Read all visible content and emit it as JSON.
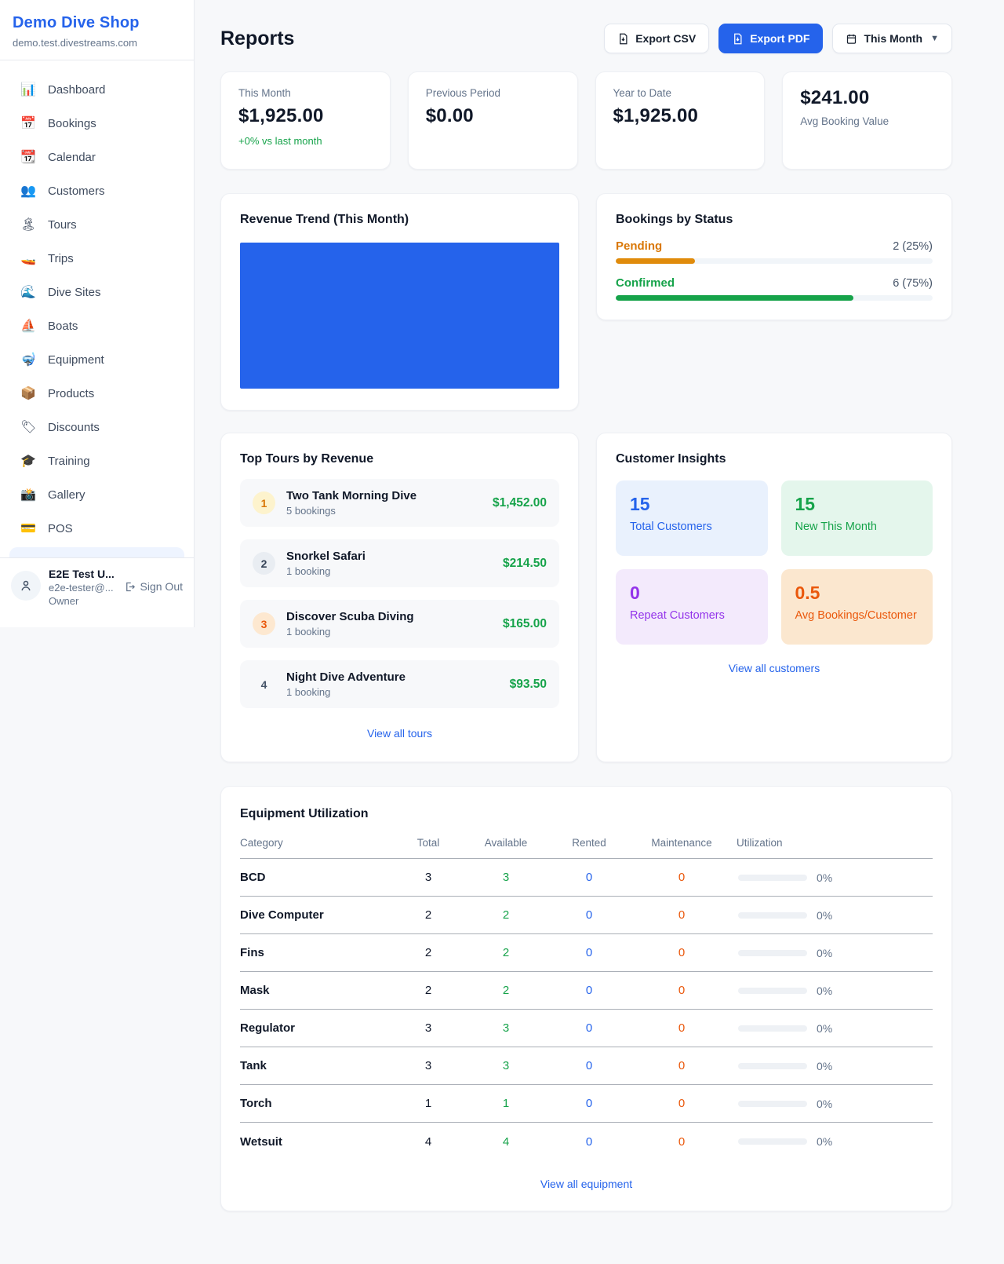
{
  "brand": {
    "name": "Demo Dive Shop",
    "domain": "demo.test.divestreams.com"
  },
  "sidebar": {
    "items": [
      {
        "icon": "📊",
        "label": "Dashboard"
      },
      {
        "icon": "📅",
        "label": "Bookings"
      },
      {
        "icon": "📆",
        "label": "Calendar"
      },
      {
        "icon": "👥",
        "label": "Customers"
      },
      {
        "icon": "🏝",
        "label": "Tours"
      },
      {
        "icon": "🚤",
        "label": "Trips"
      },
      {
        "icon": "🌊",
        "label": "Dive Sites"
      },
      {
        "icon": "⛵",
        "label": "Boats"
      },
      {
        "icon": "🤿",
        "label": "Equipment"
      },
      {
        "icon": "📦",
        "label": "Products"
      },
      {
        "icon": "🏷",
        "label": "Discounts"
      },
      {
        "icon": "🎓",
        "label": "Training"
      },
      {
        "icon": "📸",
        "label": "Gallery"
      },
      {
        "icon": "💳",
        "label": "POS"
      }
    ],
    "user": {
      "name": "E2E Test U...",
      "email": "e2e-tester@...",
      "role": "Owner",
      "sign_out": "Sign Out"
    }
  },
  "header": {
    "title": "Reports",
    "export_csv": "Export CSV",
    "export_pdf": "Export PDF",
    "period": "This Month"
  },
  "stats": [
    {
      "label": "This Month",
      "value": "$1,925.00",
      "delta": "+0% vs last month"
    },
    {
      "label": "Previous Period",
      "value": "$0.00"
    },
    {
      "label": "Year to Date",
      "value": "$1,925.00"
    },
    {
      "label": "Avg Booking Value",
      "value": "$241.00"
    }
  ],
  "revenue_trend": {
    "title": "Revenue Trend (This Month)",
    "bar_color": "#2563eb"
  },
  "chart_data": {
    "type": "bar",
    "title": "Revenue Trend (This Month)",
    "categories": [
      "This Month"
    ],
    "values": [
      1925.0
    ],
    "note": "single full-width solid blue bar, no axes or labels visible"
  },
  "bookings_by_status": {
    "title": "Bookings by Status",
    "rows": [
      {
        "label": "Pending",
        "value": "2 (25%)",
        "pct": "25%",
        "color": "#d97706"
      },
      {
        "label": "Confirmed",
        "value": "6 (75%)",
        "pct": "75%",
        "color": "#16a34a"
      }
    ]
  },
  "top_tours": {
    "title": "Top Tours by Revenue",
    "items": [
      {
        "rank": "1",
        "name": "Two Tank Morning Dive",
        "bookings": "5 bookings",
        "revenue": "$1,452.00"
      },
      {
        "rank": "2",
        "name": "Snorkel Safari",
        "bookings": "1 booking",
        "revenue": "$214.50"
      },
      {
        "rank": "3",
        "name": "Discover Scuba Diving",
        "bookings": "1 booking",
        "revenue": "$165.00"
      },
      {
        "rank": "4",
        "name": "Night Dive Adventure",
        "bookings": "1 booking",
        "revenue": "$93.50"
      }
    ],
    "link": "View all tours"
  },
  "customer_insights": {
    "title": "Customer Insights",
    "tiles": [
      {
        "value": "15",
        "label": "Total Customers"
      },
      {
        "value": "15",
        "label": "New This Month"
      },
      {
        "value": "0",
        "label": "Repeat Customers"
      },
      {
        "value": "0.5",
        "label": "Avg Bookings/Customer"
      }
    ],
    "link": "View all customers"
  },
  "equipment": {
    "title": "Equipment Utilization",
    "columns": [
      "Category",
      "Total",
      "Available",
      "Rented",
      "Maintenance",
      "Utilization"
    ],
    "rows": [
      {
        "category": "BCD",
        "total": "3",
        "available": "3",
        "rented": "0",
        "maintenance": "0",
        "utilization": "0%",
        "fill": "0%"
      },
      {
        "category": "Dive Computer",
        "total": "2",
        "available": "2",
        "rented": "0",
        "maintenance": "0",
        "utilization": "0%",
        "fill": "0%"
      },
      {
        "category": "Fins",
        "total": "2",
        "available": "2",
        "rented": "0",
        "maintenance": "0",
        "utilization": "0%",
        "fill": "0%"
      },
      {
        "category": "Mask",
        "total": "2",
        "available": "2",
        "rented": "0",
        "maintenance": "0",
        "utilization": "0%",
        "fill": "0%"
      },
      {
        "category": "Regulator",
        "total": "3",
        "available": "3",
        "rented": "0",
        "maintenance": "0",
        "utilization": "0%",
        "fill": "0%"
      },
      {
        "category": "Tank",
        "total": "3",
        "available": "3",
        "rented": "0",
        "maintenance": "0",
        "utilization": "0%",
        "fill": "0%"
      },
      {
        "category": "Torch",
        "total": "1",
        "available": "1",
        "rented": "0",
        "maintenance": "0",
        "utilization": "0%",
        "fill": "0%"
      },
      {
        "category": "Wetsuit",
        "total": "4",
        "available": "4",
        "rented": "0",
        "maintenance": "0",
        "utilization": "0%",
        "fill": "0%"
      }
    ],
    "link": "View all equipment"
  }
}
